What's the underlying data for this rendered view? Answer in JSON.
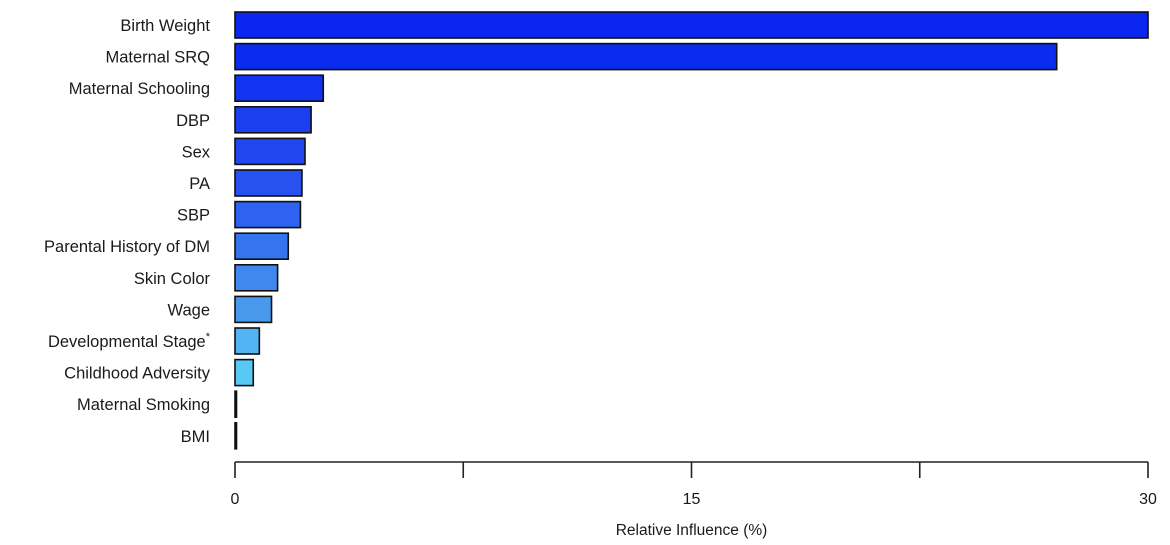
{
  "chart_data": {
    "type": "bar",
    "orientation": "horizontal",
    "categories": [
      "Birth Weight",
      "Maternal SRQ",
      "Maternal Schooling",
      "DBP",
      "Sex",
      "PA",
      "SBP",
      "Parental History of DM",
      "Skin Color",
      "Wage",
      "Developmental Stage",
      "Childhood Adversity",
      "Maternal Smoking",
      "BMI"
    ],
    "category_superscripts": [
      "",
      "",
      "",
      "",
      "",
      "",
      "",
      "",
      "",
      "",
      "*",
      "",
      "",
      ""
    ],
    "values": [
      30.0,
      27.0,
      2.9,
      2.5,
      2.3,
      2.2,
      2.15,
      1.75,
      1.4,
      1.2,
      0.8,
      0.6,
      0.05,
      0.05
    ],
    "bar_colors": [
      "#0a26f0",
      "#0a2cf0",
      "#1234f0",
      "#1a3ff0",
      "#2148f0",
      "#2852f0",
      "#2f62f0",
      "#3673ee",
      "#4088ee",
      "#4898ee",
      "#52b4f2",
      "#58c8f5",
      "#000000",
      "#000000"
    ],
    "xlim": [
      0,
      30
    ],
    "xticks": [
      0,
      7.5,
      15,
      22.5,
      30
    ],
    "xtick_labels": [
      "0",
      "",
      "15",
      "",
      "30"
    ],
    "xlabel": "Relative Influence (%)",
    "ylabel": "",
    "title": "",
    "grid": false
  }
}
